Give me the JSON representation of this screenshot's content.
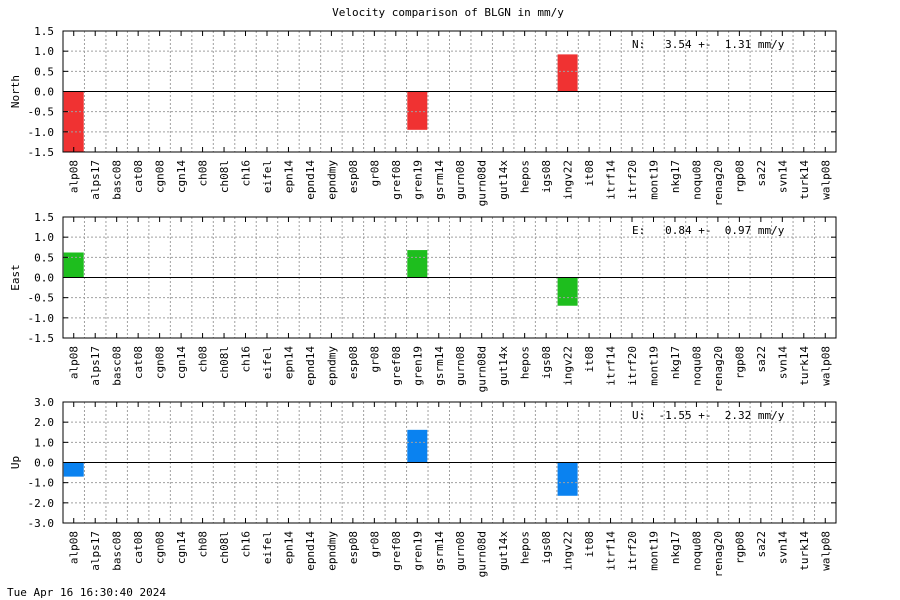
{
  "title": "Velocity comparison of BLGN in mm/y",
  "timestamp": "Tue Apr 16 16:30:40 2024",
  "chart_data": {
    "type": "bar",
    "title": "Velocity comparison of BLGN in mm/y",
    "grid": true,
    "categories": [
      "alp08",
      "alps17",
      "basc08",
      "cat08",
      "cgn08",
      "cgn14",
      "ch08",
      "ch08l",
      "ch16",
      "eifel",
      "epn14",
      "epnd14",
      "epndmy",
      "esp08",
      "gr08",
      "gref08",
      "gren19",
      "gsrm14",
      "gurn08",
      "gurn08d",
      "gut14x",
      "hepos",
      "igs08",
      "ingv22",
      "it08",
      "itrf14",
      "itrf20",
      "mont19",
      "nkg17",
      "noqu08",
      "renag20",
      "rgp08",
      "sa22",
      "svn14",
      "turk14",
      "walp08"
    ],
    "panels": [
      {
        "ylabel": "North",
        "ylim": [
          -1.5,
          1.5
        ],
        "yticks": [
          "1.5",
          "1.0",
          "0.5",
          "0.0",
          "-0.5",
          "-1.0",
          "-1.5"
        ],
        "color": "#f03232",
        "annotation": "N:   3.54 +-  1.31 mm/y",
        "bars": [
          {
            "category": "alp08",
            "value": -1.5
          },
          {
            "category": "gren19",
            "value": -0.95
          },
          {
            "category": "ingv22",
            "value": 0.92
          }
        ]
      },
      {
        "ylabel": "East",
        "ylim": [
          -1.5,
          1.5
        ],
        "yticks": [
          "1.5",
          "1.0",
          "0.5",
          "0.0",
          "-0.5",
          "-1.0",
          "-1.5"
        ],
        "color": "#1ebe1e",
        "annotation": "E:   0.84 +-  0.97 mm/y",
        "bars": [
          {
            "category": "alp08",
            "value": 0.62
          },
          {
            "category": "gren19",
            "value": 0.68
          },
          {
            "category": "ingv22",
            "value": -0.7
          }
        ]
      },
      {
        "ylabel": "Up",
        "ylim": [
          -3.0,
          3.0
        ],
        "yticks": [
          "3.0",
          "2.0",
          "1.0",
          "0.0",
          "-1.0",
          "-2.0",
          "-3.0"
        ],
        "color": "#0a82f0",
        "annotation": "U:  -1.55 +-  2.32 mm/y",
        "bars": [
          {
            "category": "alp08",
            "value": -0.7
          },
          {
            "category": "gren19",
            "value": 1.62
          },
          {
            "category": "ingv22",
            "value": -1.65
          }
        ]
      }
    ]
  }
}
